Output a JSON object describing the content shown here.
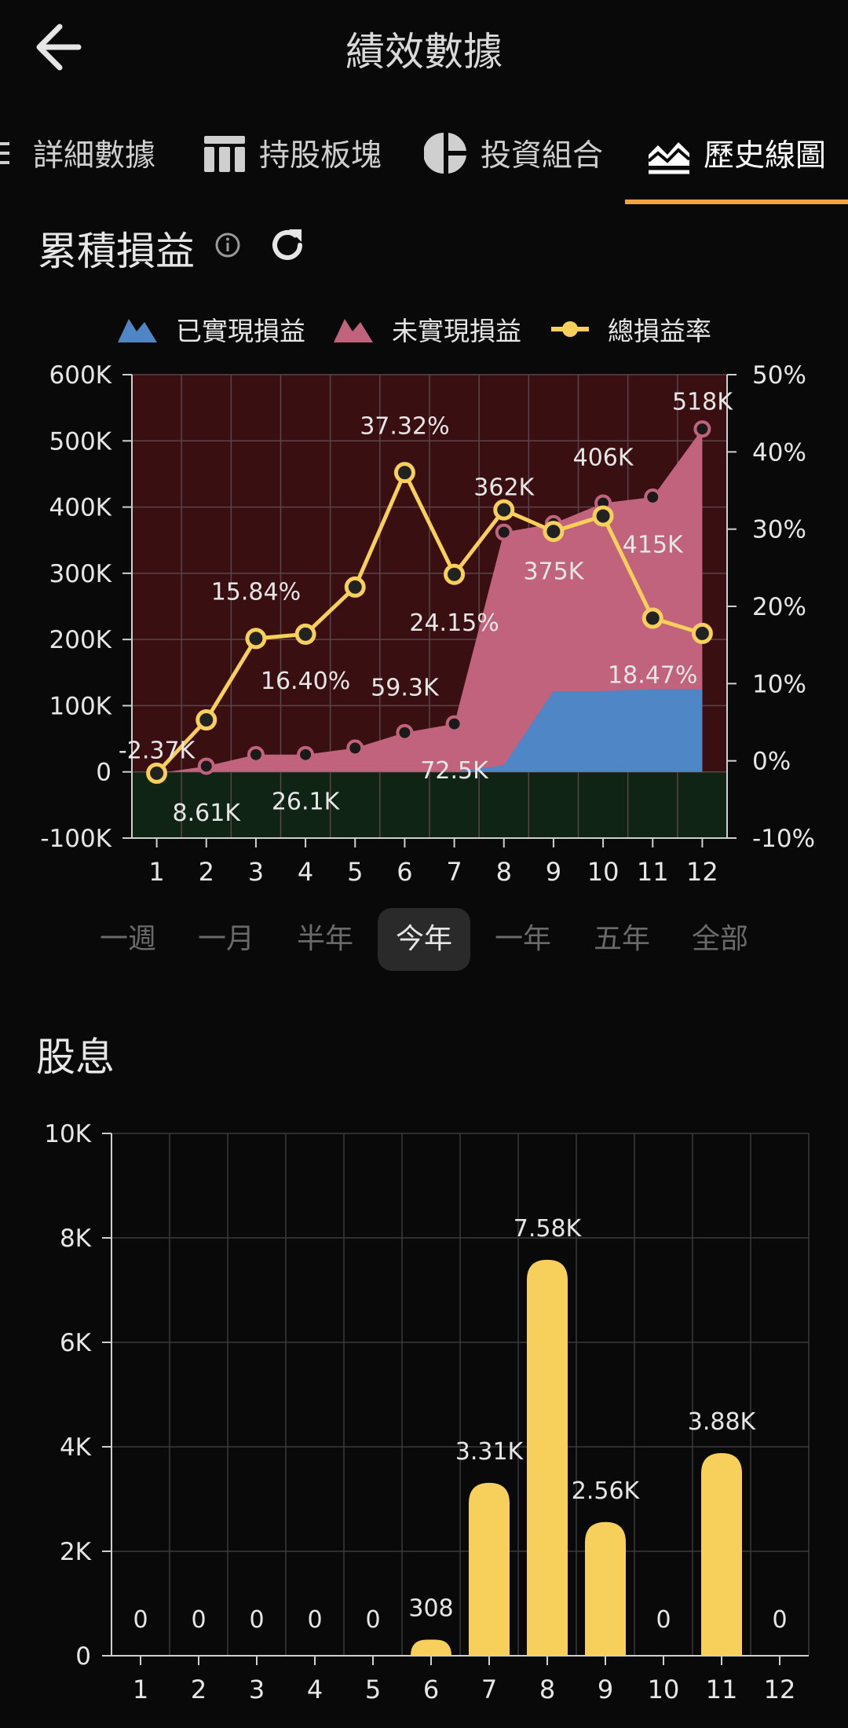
{
  "header": {
    "title": "績效數據"
  },
  "tabs": [
    {
      "label": "詳細數據",
      "icon": "list-icon"
    },
    {
      "label": "持股板塊",
      "icon": "table-icon"
    },
    {
      "label": "投資組合",
      "icon": "pie-chart-icon"
    },
    {
      "label": "歷史線圖",
      "icon": "area-chart-icon",
      "active": true
    }
  ],
  "pnl_section": {
    "title": "累積損益"
  },
  "legend": [
    {
      "label": "已實現損益",
      "color": "#4f86c6"
    },
    {
      "label": "未實現損益",
      "color": "#c2637e"
    },
    {
      "label": "總損益率",
      "color": "#f7cf5b"
    }
  ],
  "periods": [
    {
      "label": "一週"
    },
    {
      "label": "一月"
    },
    {
      "label": "半年"
    },
    {
      "label": "今年",
      "active": true
    },
    {
      "label": "一年"
    },
    {
      "label": "五年"
    },
    {
      "label": "全部"
    }
  ],
  "dividend_section": {
    "title": "股息"
  },
  "chart_data": [
    {
      "type": "area",
      "title": "",
      "x": [
        1,
        2,
        3,
        4,
        5,
        6,
        7,
        8,
        9,
        10,
        11,
        12
      ],
      "y_left_ticks": [
        "600K",
        "500K",
        "400K",
        "300K",
        "200K",
        "100K",
        "0",
        "-100K"
      ],
      "y_right_ticks": [
        "50%",
        "40%",
        "30%",
        "20%",
        "10%",
        "0%",
        "-10%"
      ],
      "ylim_left": [
        -100000,
        600000
      ],
      "ylim_right": [
        -10,
        50
      ],
      "series": [
        {
          "name": "已實現損益",
          "kind": "area",
          "axis": "left",
          "color": "#4f86c6",
          "values": [
            0,
            0,
            0,
            0,
            0,
            0,
            0,
            10000,
            122000,
            122000,
            125000,
            125000
          ]
        },
        {
          "name": "未實現損益",
          "kind": "area",
          "axis": "left",
          "color": "#c2637e",
          "values": [
            -2370,
            8610,
            26100,
            26100,
            36000,
            59300,
            72500,
            362000,
            375000,
            406000,
            415000,
            518000
          ]
        },
        {
          "name": "總損益率",
          "kind": "line",
          "axis": "right",
          "color": "#f7cf5b",
          "values": [
            -1.6,
            5.3,
            15.84,
            16.4,
            22.5,
            37.32,
            24.15,
            32.5,
            29.7,
            31.7,
            18.47,
            16.5
          ]
        }
      ],
      "data_labels": [
        {
          "text": "-2.37K",
          "x": 1,
          "y": 32000
        },
        {
          "text": "8.61K",
          "x": 2,
          "y": -62000
        },
        {
          "text": "15.84%",
          "x": 3,
          "y": 272000
        },
        {
          "text": "16.40%",
          "x": 4,
          "y": 137000
        },
        {
          "text": "26.1K",
          "x": 4,
          "y": -45000
        },
        {
          "text": "37.32%",
          "x": 6,
          "y": 522000
        },
        {
          "text": "59.3K",
          "x": 6,
          "y": 127000
        },
        {
          "text": "24.15%",
          "x": 7,
          "y": 225000
        },
        {
          "text": "72.5K",
          "x": 7,
          "y": 2000
        },
        {
          "text": "362K",
          "x": 8,
          "y": 430000
        },
        {
          "text": "375K",
          "x": 9,
          "y": 303000
        },
        {
          "text": "406K",
          "x": 10,
          "y": 475000
        },
        {
          "text": "415K",
          "x": 11,
          "y": 343000
        },
        {
          "text": "18.47%",
          "x": 11,
          "y": 146000
        },
        {
          "text": "518K",
          "x": 12,
          "y": 559000
        }
      ]
    },
    {
      "type": "bar",
      "title": "",
      "categories": [
        "1",
        "2",
        "3",
        "4",
        "5",
        "6",
        "7",
        "8",
        "9",
        "10",
        "11",
        "12"
      ],
      "values": [
        0,
        0,
        0,
        0,
        0,
        308,
        3310,
        7580,
        2560,
        0,
        3880,
        0
      ],
      "value_labels": [
        "0",
        "0",
        "0",
        "0",
        "0",
        "308",
        "3.31K",
        "7.58K",
        "2.56K",
        "0",
        "3.88K",
        "0"
      ],
      "y_ticks": [
        "10K",
        "8K",
        "6K",
        "4K",
        "2K",
        "0"
      ],
      "ylim": [
        0,
        10000
      ],
      "color": "#f7cf5b"
    }
  ]
}
